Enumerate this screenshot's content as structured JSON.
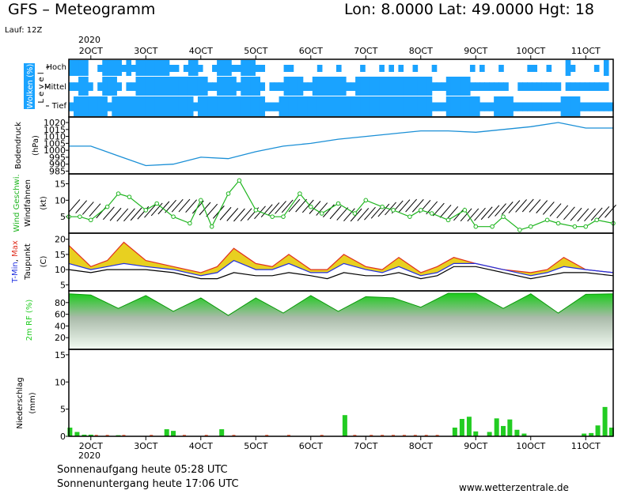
{
  "header": {
    "title": "GFS – Meteogramm",
    "location": "Lon: 8.0000  Lat: 49.0000  Hgt: 18",
    "run": "Lauf: 12Z"
  },
  "footer": {
    "sunrise": "Sonnenaufgang heute 05:28 UTC",
    "sunset": "Sonnenuntergang heute 17:06 UTC",
    "website": "www.wetterzentrale.de"
  },
  "colors": {
    "cloud": "#1aa3ff",
    "pressure": "#1a8fd6",
    "wind_speed": "#1fb51f",
    "t_max": "#e03020",
    "t_min": "#2030e0",
    "temp_fill": "#e8d020",
    "humidity": "#22cc22",
    "precip": "#22cc22",
    "precip_light": "#ff7a5a"
  },
  "chart_data": {
    "year": "2020",
    "dates": [
      "2OCT",
      "3OCT",
      "4OCT",
      "5OCT",
      "6OCT",
      "7OCT",
      "8OCT",
      "9OCT",
      "10OCT",
      "11OCT"
    ],
    "panels": [
      {
        "id": "clouds",
        "type": "heatmap",
        "label": "Wolken (%)",
        "level_axis": "L e v e l",
        "levels": [
          "Hoch",
          "Mittel",
          "Tief"
        ],
        "bands": [
          "Hoch",
          "Mittel",
          "Tief"
        ],
        "coverage": [
          [
            2,
            2,
            2,
            2,
            0,
            0,
            1,
            2,
            2,
            2,
            2,
            1,
            2,
            1,
            2,
            2,
            2,
            2,
            2,
            2,
            2,
            1,
            1,
            0,
            1,
            2,
            2,
            1,
            0,
            0,
            1,
            2,
            2,
            2,
            1,
            1,
            2,
            2,
            2,
            1,
            1,
            0,
            0,
            0,
            0,
            1,
            1,
            0,
            0,
            0,
            0,
            0,
            1,
            0,
            0,
            0,
            1,
            0,
            0,
            0,
            0,
            1,
            0,
            0,
            0,
            1,
            0,
            1,
            0,
            1,
            0,
            0,
            1,
            0,
            0,
            0,
            1,
            0,
            0,
            0,
            0,
            0,
            0,
            0,
            1,
            0,
            1,
            0,
            0,
            0,
            1,
            0,
            0,
            0,
            0,
            0,
            1,
            1,
            0,
            0,
            1,
            0,
            0,
            0,
            2,
            1,
            0,
            0,
            0,
            0,
            1,
            0,
            2,
            0
          ],
          [
            1,
            1,
            2,
            2,
            1,
            0,
            1,
            2,
            2,
            2,
            1,
            0,
            1,
            1,
            2,
            2,
            2,
            2,
            2,
            2,
            2,
            2,
            2,
            2,
            2,
            2,
            2,
            2,
            2,
            1,
            1,
            2,
            2,
            2,
            2,
            1,
            2,
            2,
            2,
            2,
            1,
            0,
            1,
            1,
            1,
            2,
            2,
            2,
            2,
            1,
            1,
            2,
            2,
            2,
            2,
            2,
            2,
            2,
            1,
            1,
            2,
            2,
            2,
            2,
            2,
            2,
            2,
            2,
            2,
            2,
            2,
            2,
            2,
            2,
            2,
            2,
            1,
            1,
            1,
            2,
            2,
            2,
            2,
            2,
            1,
            1,
            1,
            1,
            1,
            1,
            1,
            1,
            0,
            0,
            1,
            1,
            1,
            1,
            1,
            1,
            1,
            1,
            1,
            0,
            1,
            1,
            1,
            1,
            1,
            1,
            1,
            1,
            1,
            0
          ],
          [
            1,
            2,
            2,
            2,
            2,
            2,
            2,
            2,
            1,
            2,
            2,
            2,
            2,
            2,
            2,
            2,
            2,
            2,
            2,
            2,
            2,
            2,
            2,
            2,
            2,
            2,
            1,
            2,
            2,
            2,
            2,
            2,
            2,
            2,
            2,
            2,
            2,
            2,
            2,
            2,
            2,
            1,
            1,
            1,
            2,
            2,
            2,
            2,
            2,
            2,
            2,
            2,
            2,
            2,
            2,
            2,
            2,
            2,
            2,
            2,
            2,
            2,
            2,
            2,
            2,
            2,
            2,
            2,
            2,
            2,
            2,
            2,
            2,
            2,
            2,
            2,
            1,
            1,
            1,
            2,
            2,
            2,
            2,
            2,
            2,
            2,
            1,
            1,
            1,
            2,
            2,
            2,
            2,
            1,
            1,
            1,
            1,
            1,
            1,
            1,
            1,
            1,
            1,
            2,
            2,
            2,
            2,
            1,
            1,
            1,
            1,
            1,
            1,
            1
          ]
        ]
      },
      {
        "id": "pressure",
        "type": "line",
        "ylabel": "Bodendruck",
        "unit": "(hPa)",
        "yticks": [
          1020,
          1015,
          1010,
          1005,
          1000,
          995,
          990,
          985
        ],
        "ylim": [
          983,
          1024
        ],
        "days": [
          1.6,
          2.0,
          2.5,
          3.0,
          3.5,
          4.0,
          4.5,
          5.0,
          5.5,
          6.0,
          6.5,
          7.0,
          7.5,
          8.0,
          8.5,
          9.0,
          9.5,
          10.0,
          10.5,
          11.0,
          11.5
        ],
        "values": [
          1003,
          1003,
          996,
          989,
          990,
          995,
          994,
          999,
          1003,
          1005,
          1008,
          1010,
          1012,
          1014,
          1014,
          1013,
          1015,
          1017,
          1020,
          1016,
          1016
        ]
      },
      {
        "id": "wind",
        "type": "line",
        "ylabel": "Wind Geschwi.",
        "ylabel2": "Windfahnen",
        "unit": "(kt)",
        "yticks": [
          15,
          10,
          5
        ],
        "ylim": [
          0,
          18
        ],
        "days": [
          1.6,
          1.8,
          2.0,
          2.3,
          2.5,
          2.7,
          3.0,
          3.2,
          3.5,
          3.8,
          4.0,
          4.2,
          4.5,
          4.7,
          5.0,
          5.3,
          5.5,
          5.8,
          6.0,
          6.2,
          6.5,
          6.8,
          7.0,
          7.3,
          7.5,
          7.8,
          8.0,
          8.2,
          8.5,
          8.8,
          9.0,
          9.3,
          9.5,
          9.8,
          10.0,
          10.3,
          10.5,
          10.8,
          11.0,
          11.2,
          11.5
        ],
        "values": [
          5,
          5,
          4,
          8,
          12,
          11,
          7,
          9,
          5,
          3,
          10,
          2,
          12,
          16,
          7,
          5,
          5,
          12,
          8,
          6,
          9,
          6,
          10,
          8,
          7,
          5,
          7,
          6,
          4,
          7,
          2,
          2,
          5,
          1,
          2,
          4,
          3,
          2,
          2,
          4,
          3
        ]
      },
      {
        "id": "temperature",
        "type": "area",
        "ylabel": "T-Min, Max",
        "ylabel_parts": [
          "T-Min",
          ", ",
          "Max"
        ],
        "ylabel2": "Taupunkt",
        "unit": "(C)",
        "yticks": [
          20,
          15,
          10,
          5
        ],
        "ylim": [
          3,
          22
        ],
        "days": [
          1.6,
          2.0,
          2.3,
          2.6,
          3.0,
          3.5,
          4.0,
          4.3,
          4.6,
          5.0,
          5.3,
          5.6,
          6.0,
          6.3,
          6.6,
          7.0,
          7.3,
          7.6,
          8.0,
          8.3,
          8.6,
          9.0,
          9.5,
          10.0,
          10.3,
          10.6,
          11.0,
          11.5
        ],
        "series": [
          {
            "name": "T-Max",
            "values": [
              18,
              11,
              13,
              19,
              13,
              11,
              9,
              11,
              17,
              12,
              11,
              15,
              10,
              10,
              15,
              11,
              10,
              14,
              9,
              11,
              14,
              12,
              10,
              9,
              10,
              14,
              10,
              9
            ]
          },
          {
            "name": "T-Min",
            "values": [
              12,
              10,
              11,
              12,
              11,
              10,
              8,
              9,
              13,
              10,
              10,
              12,
              9,
              9,
              12,
              10,
              9,
              11,
              8,
              9,
              12,
              12,
              10,
              8,
              9,
              11,
              10,
              9
            ]
          },
          {
            "name": "Taupunkt",
            "values": [
              10,
              9,
              10,
              10,
              10,
              9,
              7,
              7,
              9,
              8,
              8,
              9,
              8,
              7,
              9,
              8,
              8,
              9,
              7,
              8,
              11,
              11,
              9,
              7,
              8,
              9,
              9,
              8
            ]
          }
        ]
      },
      {
        "id": "humidity",
        "type": "area",
        "ylabel": "2m RF (%)",
        "yticks": [
          80,
          60,
          40,
          20
        ],
        "ylim": [
          0,
          100
        ],
        "days": [
          1.6,
          2.0,
          2.5,
          3.0,
          3.5,
          4.0,
          4.5,
          5.0,
          5.5,
          6.0,
          6.5,
          7.0,
          7.5,
          8.0,
          8.5,
          9.0,
          9.5,
          10.0,
          10.5,
          11.0,
          11.5
        ],
        "values": [
          95,
          93,
          70,
          92,
          65,
          88,
          58,
          88,
          62,
          92,
          65,
          90,
          88,
          72,
          96,
          96,
          70,
          95,
          62,
          94,
          95
        ]
      },
      {
        "id": "precipitation",
        "type": "bar",
        "ylabel": "Niederschlag",
        "unit": "(mm)",
        "yticks": [
          15,
          10,
          5,
          0
        ],
        "ylim": [
          0,
          16
        ],
        "bars": [
          {
            "d": 1.62,
            "v": 1.6
          },
          {
            "d": 1.75,
            "v": 0.8
          },
          {
            "d": 1.88,
            "v": 0.3
          },
          {
            "d": 2.0,
            "v": 0.3
          },
          {
            "d": 2.5,
            "v": 0.2
          },
          {
            "d": 3.38,
            "v": 1.3
          },
          {
            "d": 3.5,
            "v": 1.0
          },
          {
            "d": 4.38,
            "v": 1.3
          },
          {
            "d": 6.62,
            "v": 3.9
          },
          {
            "d": 8.62,
            "v": 1.6
          },
          {
            "d": 8.75,
            "v": 3.2
          },
          {
            "d": 8.88,
            "v": 3.6
          },
          {
            "d": 9.0,
            "v": 0.9
          },
          {
            "d": 9.25,
            "v": 0.8
          },
          {
            "d": 9.38,
            "v": 3.3
          },
          {
            "d": 9.5,
            "v": 1.9
          },
          {
            "d": 9.62,
            "v": 3.1
          },
          {
            "d": 9.75,
            "v": 1.2
          },
          {
            "d": 9.88,
            "v": 0.5
          },
          {
            "d": 10.97,
            "v": 0.5
          },
          {
            "d": 11.1,
            "v": 0.6
          },
          {
            "d": 11.22,
            "v": 2.0
          },
          {
            "d": 11.35,
            "v": 5.4
          },
          {
            "d": 11.47,
            "v": 1.6
          }
        ],
        "light_bars": [
          2.1,
          2.3,
          2.6,
          3.1,
          3.7,
          4.1,
          4.6,
          5.2,
          5.6,
          6.2,
          6.8,
          7.1,
          7.3,
          7.5,
          7.7,
          7.9,
          8.1,
          8.3
        ]
      }
    ]
  }
}
